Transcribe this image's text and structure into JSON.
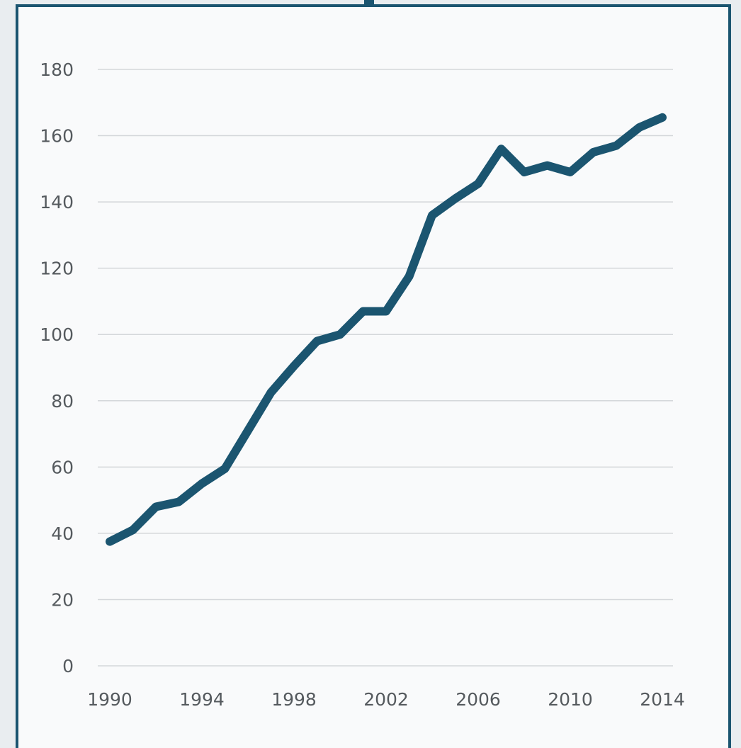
{
  "chart_data": {
    "type": "line",
    "title": "",
    "xlabel": "",
    "ylabel": "",
    "x": [
      1990,
      1991,
      1992,
      1993,
      1994,
      1995,
      1996,
      1997,
      1998,
      1999,
      2000,
      2001,
      2002,
      2003,
      2004,
      2005,
      2006,
      2007,
      2008,
      2009,
      2010,
      2011,
      2012,
      2013,
      2014
    ],
    "series": [
      {
        "values": [
          37.5,
          41,
          48,
          49.5,
          55,
          59.5,
          71,
          82.5,
          90.5,
          98,
          100,
          107,
          107,
          117.5,
          136,
          141,
          145.5,
          156,
          149,
          151,
          149,
          155,
          157,
          162.5,
          165.5
        ],
        "color": "#1b5570"
      }
    ],
    "xlim": [
      1990,
      2014
    ],
    "ylim": [
      0,
      180
    ],
    "x_ticks": [
      "1990",
      "1994",
      "1998",
      "2002",
      "2006",
      "2010",
      "2014"
    ],
    "y_ticks": [
      "0",
      "20",
      "40",
      "60",
      "80",
      "100",
      "120",
      "140",
      "160",
      "180"
    ],
    "grid": "horizontal",
    "legend": "none"
  }
}
